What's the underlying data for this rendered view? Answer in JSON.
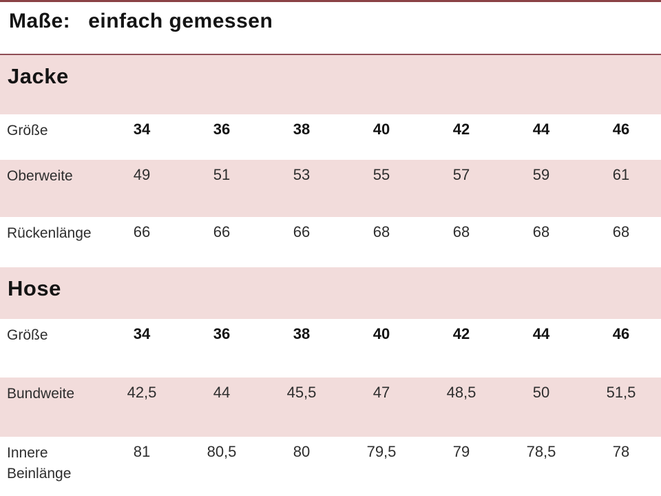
{
  "header": {
    "title_label": "Maße:",
    "title_text": "einfach gemessen"
  },
  "colors": {
    "accent_dark": "#8b4245",
    "accent_line": "#8f4e55",
    "row_pink": "#f2dcdb",
    "text_dark": "#141414",
    "text_body": "#2e2e2e"
  },
  "sections": [
    {
      "title": "Jacke",
      "rows": [
        {
          "label": "Größe",
          "values": [
            "34",
            "36",
            "38",
            "40",
            "42",
            "44",
            "46"
          ]
        },
        {
          "label": "Oberweite",
          "values": [
            "49",
            "51",
            "53",
            "55",
            "57",
            "59",
            "61"
          ]
        },
        {
          "label": "Rückenlänge",
          "values": [
            "66",
            "66",
            "66",
            "68",
            "68",
            "68",
            "68"
          ]
        }
      ]
    },
    {
      "title": "Hose",
      "rows": [
        {
          "label": "Größe",
          "values": [
            "34",
            "36",
            "38",
            "40",
            "42",
            "44",
            "46"
          ]
        },
        {
          "label": "Bundweite",
          "values": [
            "42,5",
            "44",
            "45,5",
            "47",
            "48,5",
            "50",
            "51,5"
          ]
        },
        {
          "label": "Innere Beinlänge",
          "values": [
            "81",
            "80,5",
            "80",
            "79,5",
            "79",
            "78,5",
            "78"
          ]
        }
      ]
    }
  ]
}
